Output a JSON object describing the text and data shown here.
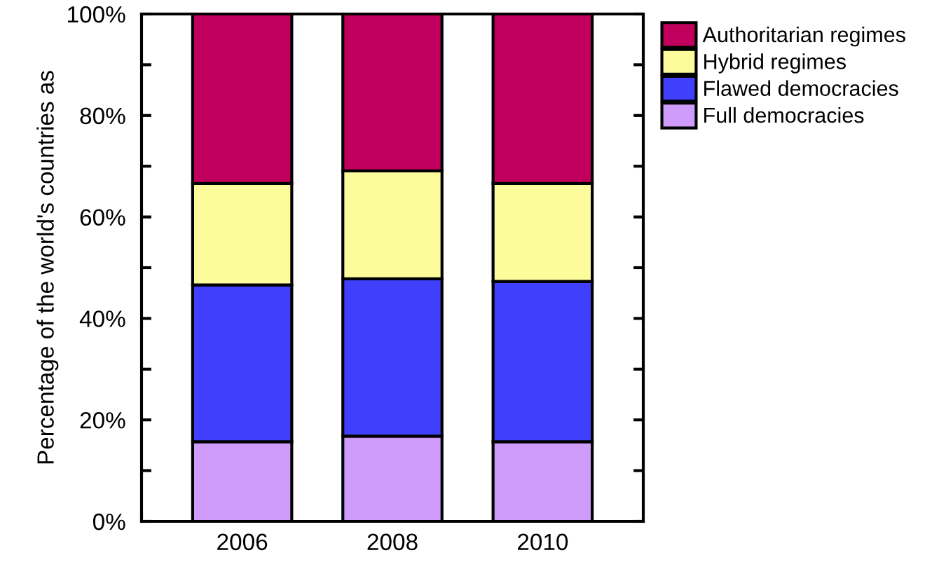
{
  "chart_data": {
    "type": "bar",
    "stacked": true,
    "ylabel": "Percentage of the world's countries as",
    "categories": [
      "2006",
      "2008",
      "2010"
    ],
    "series": [
      {
        "name": "Full democracies",
        "color": "#d09cfc",
        "values": [
          15.7,
          16.8,
          15.7
        ]
      },
      {
        "name": "Flawed democracies",
        "color": "#4040fc",
        "values": [
          30.9,
          31.0,
          31.6
        ]
      },
      {
        "name": "Hybrid regimes",
        "color": "#fcfc9c",
        "values": [
          20.0,
          21.3,
          19.3
        ]
      },
      {
        "name": "Authoritarian regimes",
        "color": "#c0005c",
        "values": [
          33.4,
          30.9,
          33.4
        ]
      }
    ],
    "ylim": [
      0,
      100
    ],
    "yticks": [
      {
        "value": 0,
        "label": "0%"
      },
      {
        "value": 10,
        "label": null
      },
      {
        "value": 20,
        "label": "20%"
      },
      {
        "value": 30,
        "label": null
      },
      {
        "value": 40,
        "label": "40%"
      },
      {
        "value": 50,
        "label": null
      },
      {
        "value": 60,
        "label": "60%"
      },
      {
        "value": 70,
        "label": null
      },
      {
        "value": 80,
        "label": "80%"
      },
      {
        "value": 90,
        "label": null
      },
      {
        "value": 100,
        "label": "100%"
      }
    ],
    "grid": false,
    "legend": "top right"
  }
}
